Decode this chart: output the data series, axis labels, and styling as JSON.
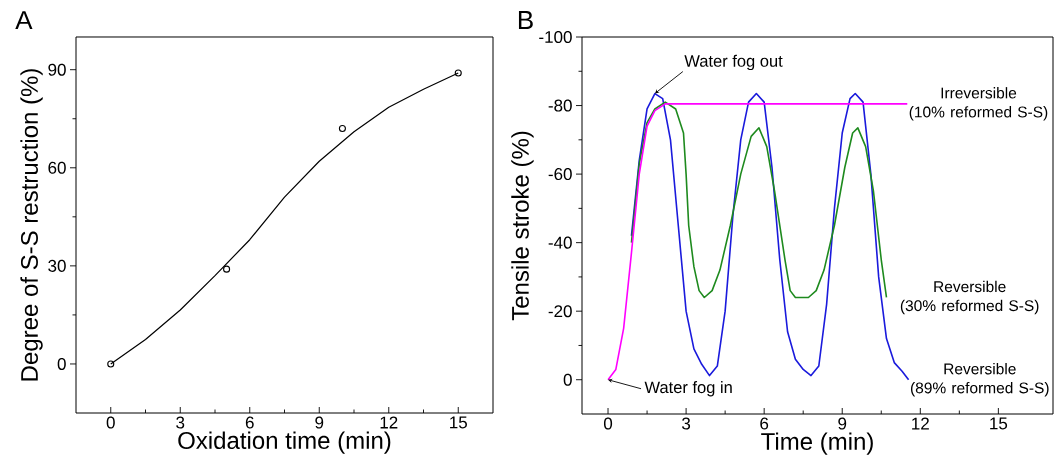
{
  "chart_data": [
    {
      "type": "line",
      "title": "A",
      "xlabel": "Oxidation time (min)",
      "ylabel": "Degree of S-S restruction (%)",
      "xlim": [
        -1.5,
        16.5
      ],
      "ylim": [
        -15,
        100
      ],
      "xticks": [
        0,
        3,
        6,
        9,
        12,
        15
      ],
      "yticks": [
        0,
        30,
        60,
        90
      ],
      "series": [
        {
          "type": "scatter",
          "marker": "circle",
          "color": "#000000",
          "x": [
            0,
            5,
            10,
            15
          ],
          "values": [
            0,
            29,
            72,
            89
          ]
        },
        {
          "type": "line",
          "color": "#000000",
          "x": [
            0,
            1.5,
            3,
            4.5,
            6,
            7.5,
            9,
            10.5,
            12,
            13.5,
            15
          ],
          "values": [
            0,
            7.5,
            16.5,
            27,
            38,
            51,
            62,
            71,
            78.5,
            84,
            89
          ]
        }
      ]
    },
    {
      "type": "line",
      "title": "B",
      "xlabel": "Time (min)",
      "ylabel": "Tensile stroke (%)",
      "xlim": [
        -1,
        17.1
      ],
      "ylim": [
        10,
        -100
      ],
      "xticks": [
        0,
        3,
        6,
        9,
        12,
        15
      ],
      "yticks": [
        -100,
        -80,
        -60,
        -40,
        -20,
        0
      ],
      "annotations": [
        {
          "text": "Water fog out",
          "x": 1.8,
          "y": -83.5
        },
        {
          "text": "Water fog in",
          "x": 0,
          "y": 0
        }
      ],
      "series": [
        {
          "name": "Reversible (89% reformed S-S)",
          "color": "#1a1adc",
          "x": [
            0.9,
            1.2,
            1.5,
            1.8,
            2.1,
            2.4,
            2.7,
            3.0,
            3.3,
            3.6,
            3.9,
            4.2,
            4.5,
            4.8,
            5.1,
            5.4,
            5.7,
            6.0,
            6.3,
            6.6,
            6.9,
            7.2,
            7.5,
            7.8,
            8.1,
            8.4,
            8.7,
            9.0,
            9.3,
            9.5,
            9.8,
            10.1,
            10.4,
            10.7,
            11.0,
            11.3,
            11.55
          ],
          "values": [
            -42,
            -64,
            -79,
            -83.5,
            -82,
            -70,
            -45,
            -20,
            -9,
            -4.5,
            -1.2,
            -4,
            -20,
            -48,
            -70,
            -81,
            -83.5,
            -81,
            -62,
            -35,
            -14,
            -6,
            -3,
            -1.2,
            -4,
            -22,
            -50,
            -72,
            -82,
            -83.5,
            -81,
            -60,
            -30,
            -12,
            -5,
            -2.5,
            0
          ]
        },
        {
          "name": "Reversible (30% reformed S-S)",
          "color": "#1e8a1e",
          "x": [
            0.9,
            1.2,
            1.5,
            1.8,
            2.2,
            2.6,
            2.9,
            3.0,
            3.1,
            3.3,
            3.5,
            3.7,
            4.0,
            4.3,
            4.7,
            5.1,
            5.5,
            5.8,
            6.1,
            6.4,
            6.8,
            7.0,
            7.2,
            7.7,
            8.0,
            8.3,
            8.7,
            9.1,
            9.4,
            9.6,
            9.9,
            10.2,
            10.5,
            10.7
          ],
          "values": [
            -40,
            -63,
            -75,
            -79,
            -81,
            -79,
            -72,
            -60,
            -45,
            -33,
            -26,
            -24,
            -26,
            -32,
            -45,
            -60,
            -71,
            -73.5,
            -68,
            -55,
            -35,
            -26,
            -24,
            -24,
            -26,
            -32,
            -45,
            -62,
            -72,
            -73.5,
            -68,
            -55,
            -35,
            -24
          ]
        },
        {
          "name": "Irreversible (10% reformed S-S)",
          "color": "#ff00ff",
          "x": [
            0,
            0.3,
            0.6,
            0.9,
            1.2,
            1.5,
            1.8,
            2.2,
            11.5
          ],
          "values": [
            0,
            -3,
            -15,
            -37,
            -60,
            -74,
            -78.5,
            -80.5,
            -80.5
          ]
        }
      ]
    }
  ]
}
